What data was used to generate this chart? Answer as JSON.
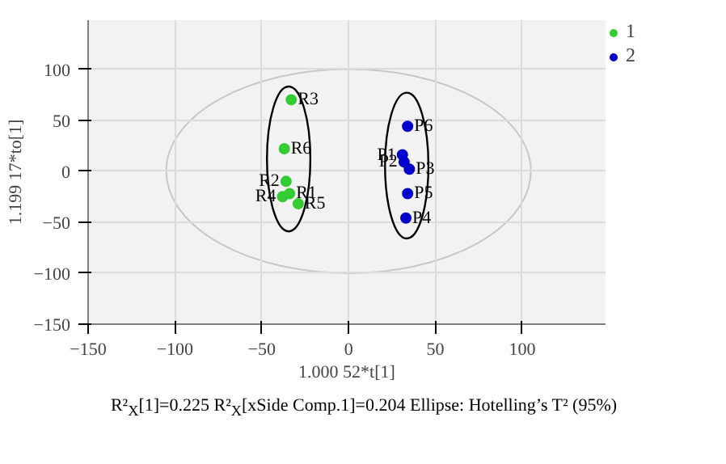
{
  "chart_data": {
    "type": "scatter",
    "xlabel": "1.000 52*t[1]",
    "ylabel": "1.199 17*to[1]",
    "xlim": [
      -150,
      148
    ],
    "ylim": [
      -150,
      148
    ],
    "xticks": [
      -150,
      -100,
      -50,
      0,
      50,
      100
    ],
    "yticks": [
      -150,
      -100,
      -50,
      0,
      50,
      100
    ],
    "grid": true,
    "legend": "top right",
    "marker": "circle",
    "series": [
      {
        "name": "1",
        "color": "#33cc33",
        "x": [
          -34,
          -36,
          -33,
          -38,
          -29,
          -37
        ],
        "values": [
          -22,
          -10,
          70,
          -25,
          -32,
          22
        ]
      },
      {
        "name": "2",
        "color": "#0000cc",
        "x": [
          31,
          32,
          35,
          33,
          34,
          34
        ],
        "values": [
          16,
          9,
          2,
          -46,
          -22,
          44
        ]
      }
    ],
    "annotations": [
      {
        "text": "R1",
        "x": -34,
        "y": -22
      },
      {
        "text": "R2",
        "x": -36,
        "y": -10
      },
      {
        "text": "R3",
        "x": -33,
        "y": 70
      },
      {
        "text": "R4",
        "x": -38,
        "y": -25
      },
      {
        "text": "R5",
        "x": -29,
        "y": -32
      },
      {
        "text": "R6",
        "x": -37,
        "y": 22
      },
      {
        "text": "P1",
        "x": 31,
        "y": 16
      },
      {
        "text": "P2",
        "x": 32,
        "y": 9
      },
      {
        "text": "P3",
        "x": 35,
        "y": 2
      },
      {
        "text": "P4",
        "x": 33,
        "y": -46
      },
      {
        "text": "P5",
        "x": 34,
        "y": -22
      },
      {
        "text": "P6",
        "x": 34,
        "y": 44
      },
      "R²$_{X}$[1]=0.225 R²$_{X}$[xSide Comp.1]=0.204 Ellipse: Hotelling’s T² (95%)"
    ]
  }
}
